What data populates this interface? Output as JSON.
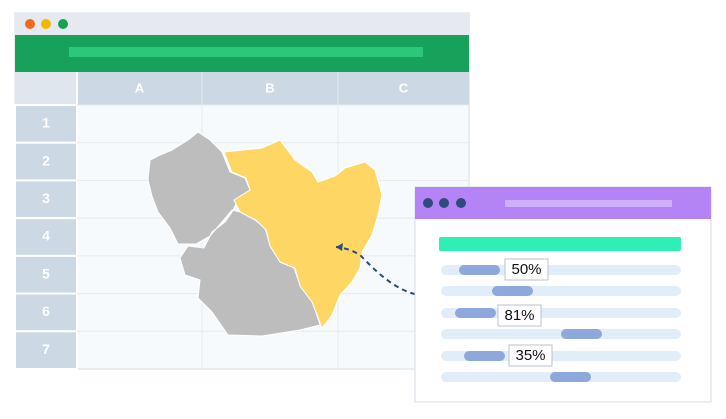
{
  "spreadsheet": {
    "columns": [
      "A",
      "B",
      "C"
    ],
    "rows": [
      "1",
      "2",
      "3",
      "4",
      "5",
      "6",
      "7"
    ]
  },
  "panel": {
    "labels": [
      "50%",
      "81%",
      "35%"
    ]
  }
}
